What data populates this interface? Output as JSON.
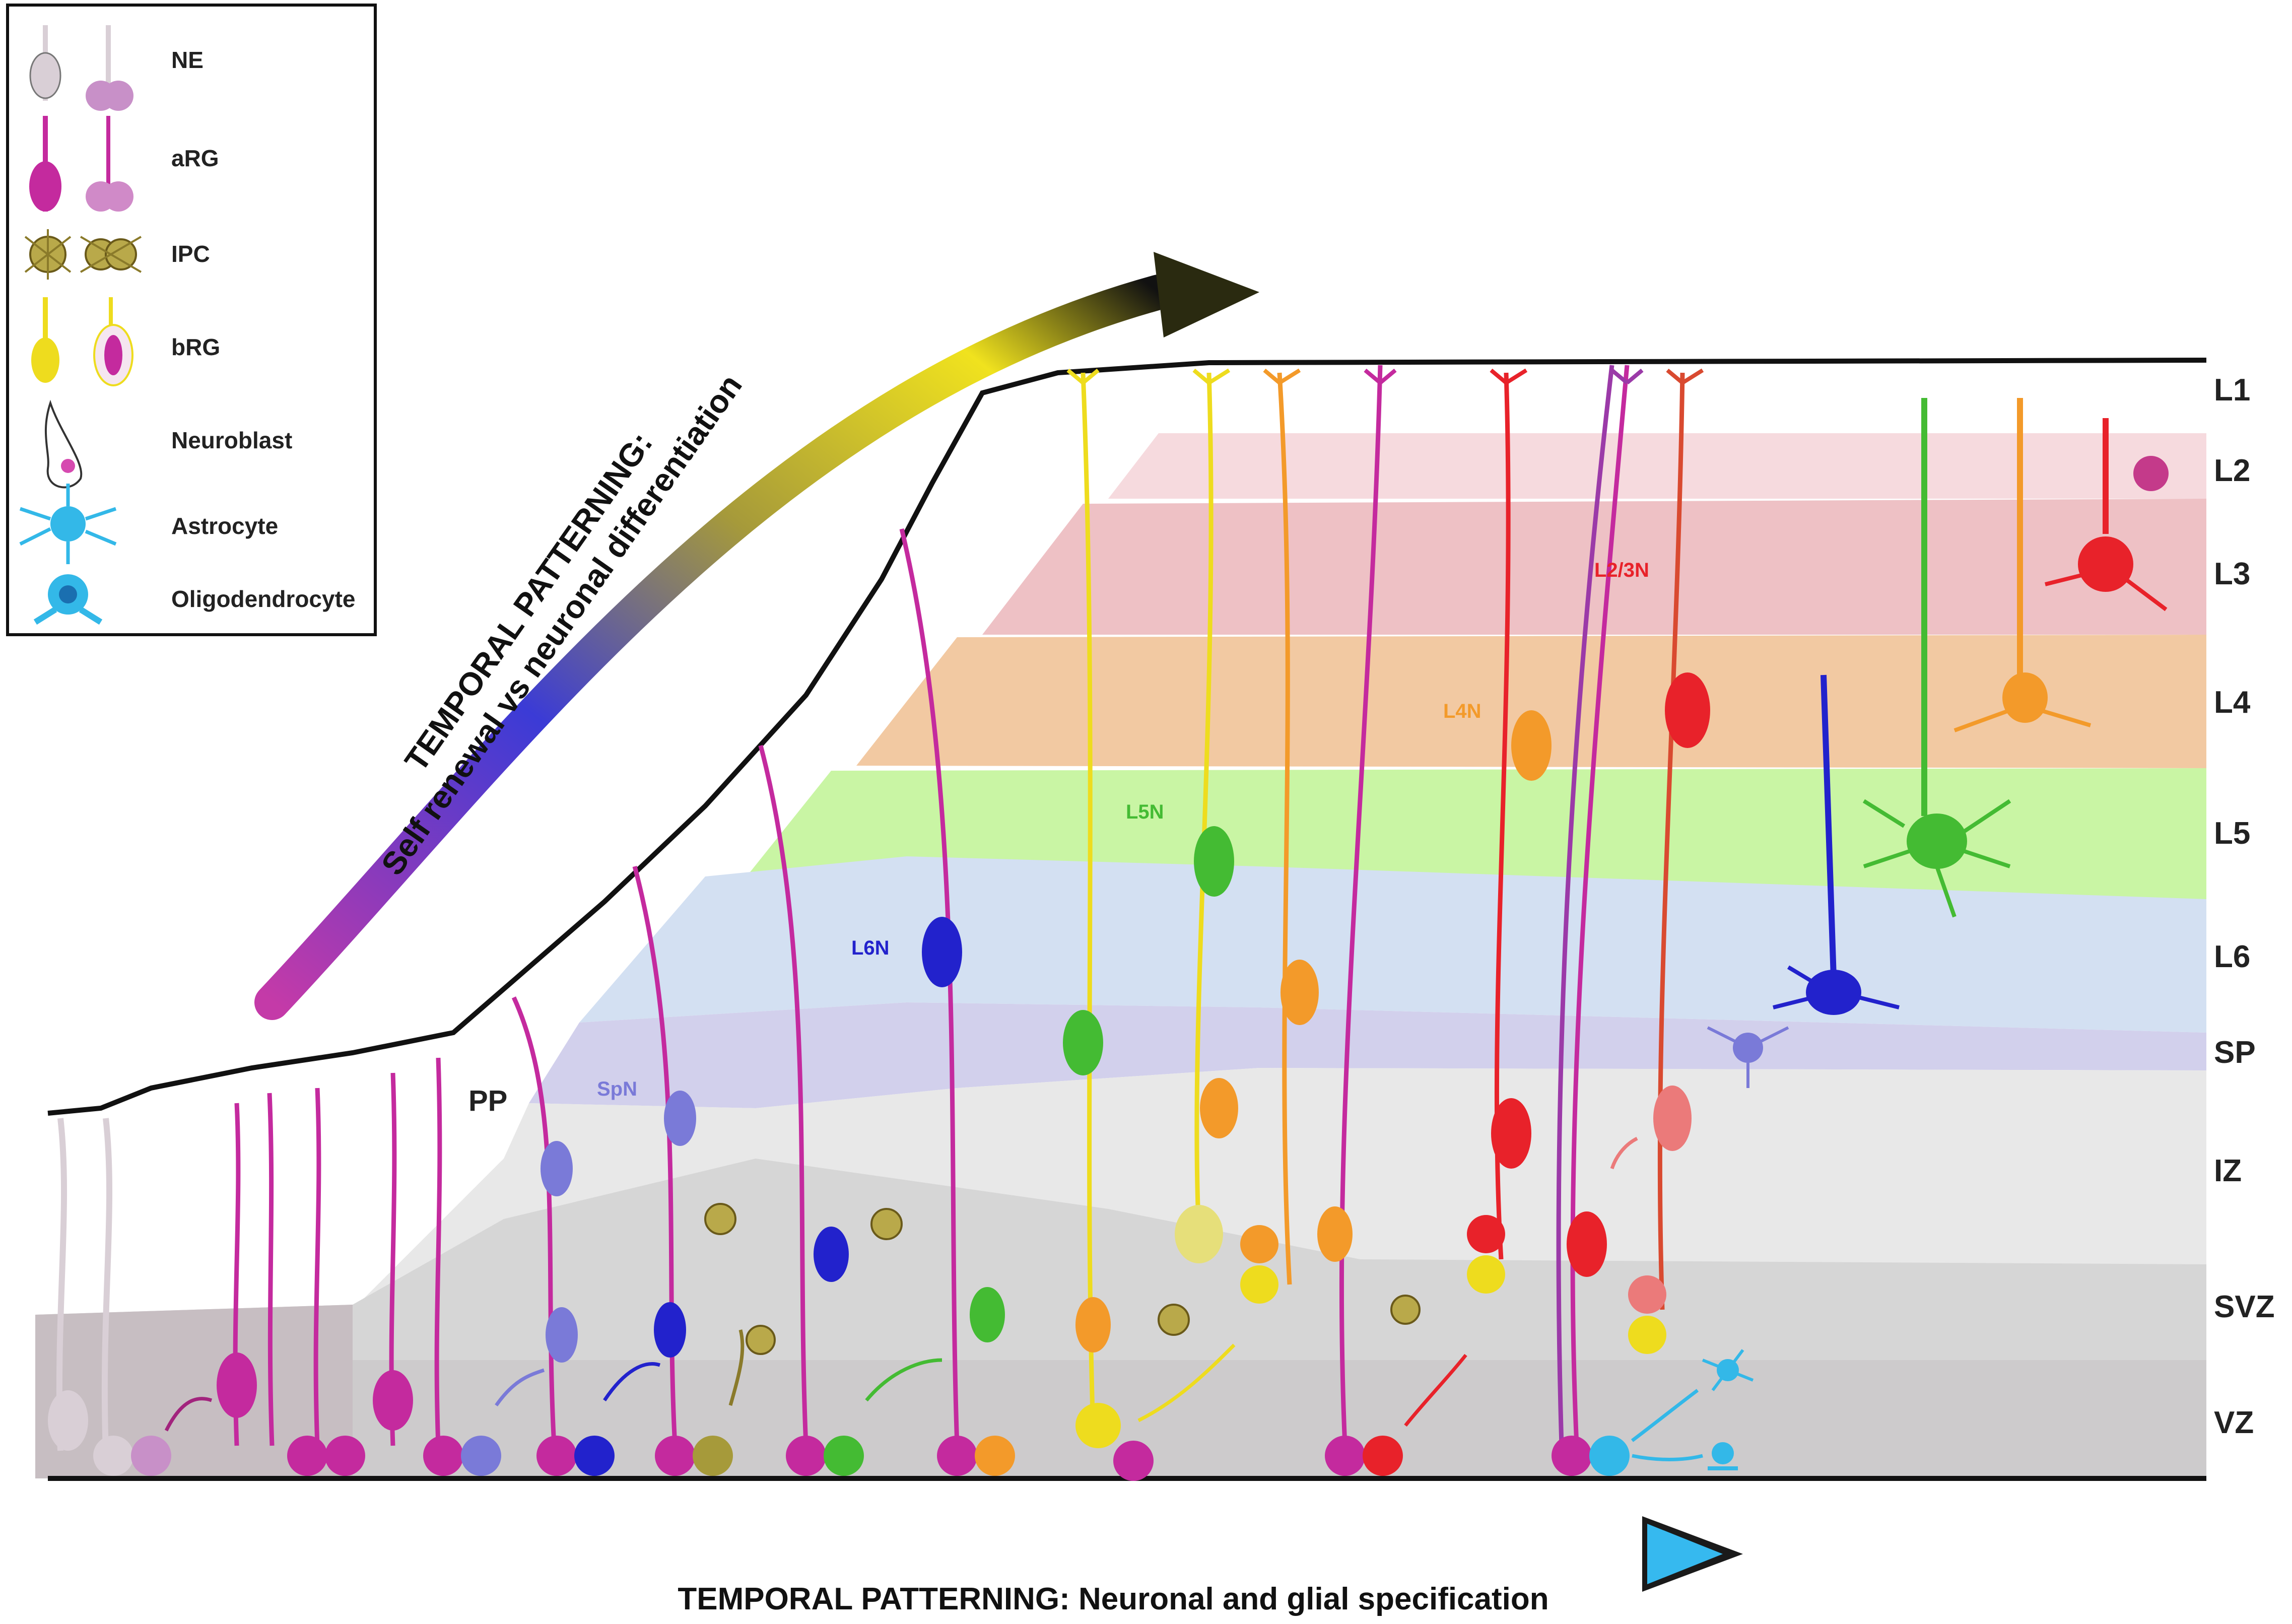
{
  "legend": {
    "items": [
      {
        "label": "NE",
        "icon": "neuroepithelial-cell-icon"
      },
      {
        "label": "aRG",
        "icon": "apical-radial-glia-icon"
      },
      {
        "label": "IPC",
        "icon": "intermediate-progenitor-icon"
      },
      {
        "label": "bRG",
        "icon": "basal-radial-glia-icon"
      },
      {
        "label": "Neuroblast",
        "icon": "neuroblast-icon"
      },
      {
        "label": "Astrocyte",
        "icon": "astrocyte-icon"
      },
      {
        "label": "Oligodendrocyte",
        "icon": "oligodendrocyte-icon"
      }
    ]
  },
  "layers": [
    "L1",
    "L2",
    "L3",
    "L4",
    "L5",
    "L6",
    "SP",
    "IZ",
    "SVZ",
    "VZ"
  ],
  "zone_labels": {
    "pp": "PP",
    "spn": "SpN",
    "l6n": "L6N",
    "l5n": "L5N",
    "l4n": "L4N",
    "l23n": "L2/3N"
  },
  "arrows": {
    "top_line1": "TEMPORAL PATTERNING:",
    "top_line2": "Self renewal vs neuronal differentiation",
    "bottom": "TEMPORAL PATTERNING: Neuronal and glial specification"
  },
  "colors": {
    "ne": "#d9cfd6",
    "arg": "#c42a9e",
    "ipc": "#8a7a2a",
    "brg": "#f2e22a",
    "spn": "#7a7ad8",
    "l6n": "#2222cc",
    "l5n": "#44bb33",
    "l4n": "#f39a2a",
    "l23n": "#e8222a",
    "astro": "#33b8e8",
    "band_l2": "#f6dade",
    "band_l3": "#eec1c5",
    "band_l4": "#f2c9a2",
    "band_l5": "#c9f5a4",
    "band_l6": "#d3e0f2",
    "band_sp": "#d2d0ec"
  }
}
